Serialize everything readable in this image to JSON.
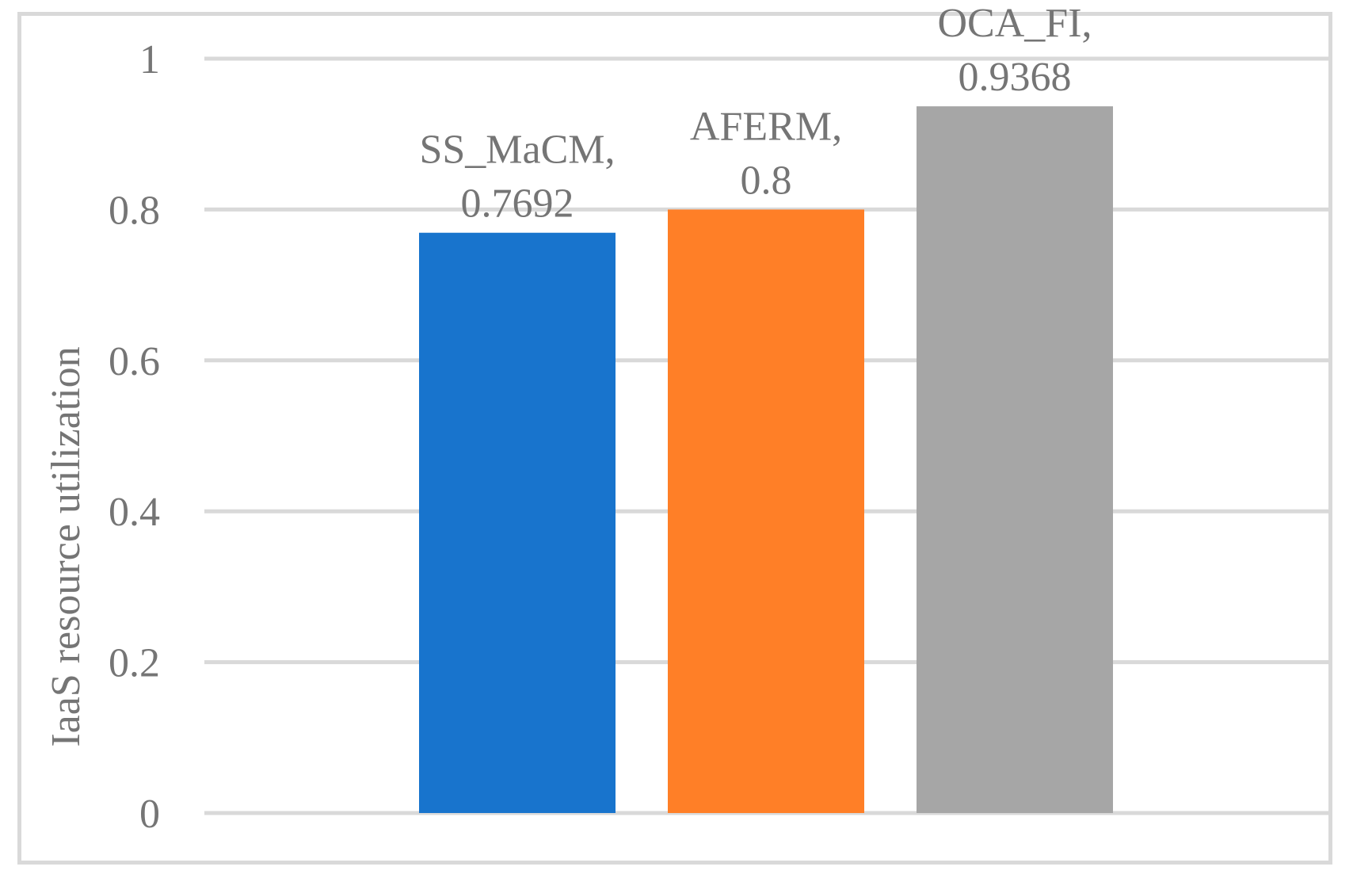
{
  "chart_data": {
    "type": "bar",
    "title": "",
    "xlabel": "",
    "ylabel": "IaaS resource utilization",
    "ylim": [
      0,
      1
    ],
    "yticks": [
      0,
      0.2,
      0.4,
      0.6,
      0.8,
      1
    ],
    "ytick_labels": [
      "0",
      "0.2",
      "0.4",
      "0.6",
      "0.8",
      "1"
    ],
    "grid": true,
    "legend": "none",
    "categories": [
      "SS_MaCM",
      "AFERM",
      "OCA_FI"
    ],
    "values": [
      0.7692,
      0.8,
      0.9368
    ],
    "value_labels": [
      "0.7692",
      "0.8",
      "0.9368"
    ],
    "colors": [
      "#1874cd",
      "#ff7f27",
      "#a6a6a6"
    ],
    "gridline_color": "#d9d9d9",
    "text_color": "#757575"
  }
}
